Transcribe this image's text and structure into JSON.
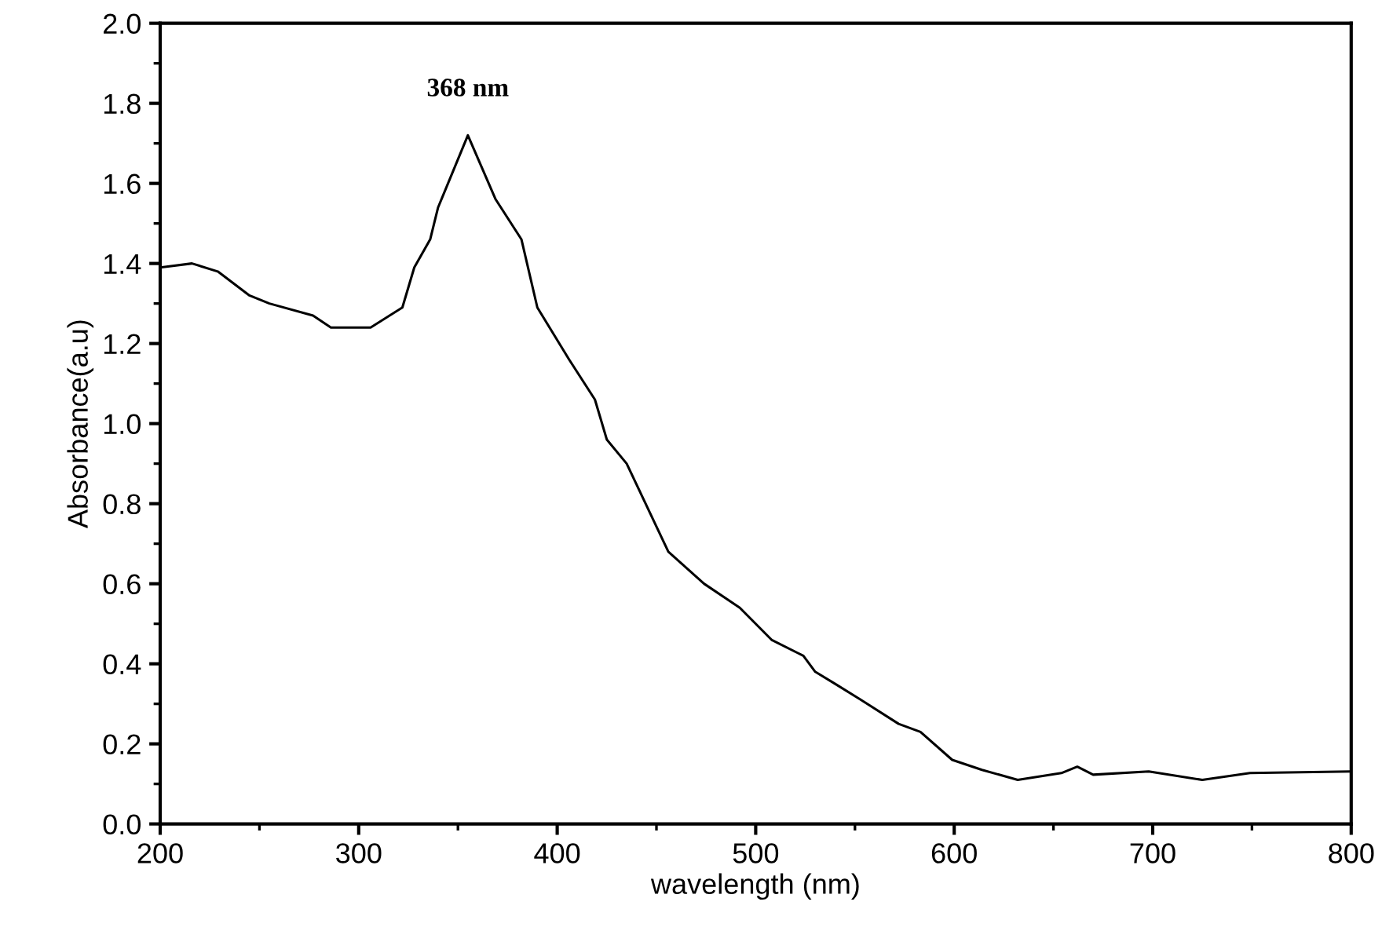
{
  "chart_data": {
    "type": "line",
    "xlabel": "wavelength (nm)",
    "ylabel": "Absorbance(a.u)",
    "xlim": [
      200,
      800
    ],
    "ylim": [
      0,
      2.0
    ],
    "xticks": [
      200,
      300,
      400,
      500,
      600,
      700,
      800
    ],
    "yticks": [
      {
        "value": 0,
        "label": "0.0"
      },
      0.2,
      0.4,
      0.6,
      0.8,
      {
        "value": 1,
        "label": "1.0"
      },
      1.2,
      1.4,
      1.6,
      1.8,
      {
        "value": 2,
        "label": "2.0"
      }
    ],
    "annotations": [
      {
        "text": "368 nm",
        "x": 355,
        "y": 1.72
      }
    ],
    "grid": false,
    "legend": false,
    "marker": "none",
    "line_style": "solid",
    "series": [
      {
        "color": "#000000",
        "x": [
          200,
          216,
          229,
          245,
          255,
          277,
          286,
          306,
          322,
          328,
          336,
          340,
          355,
          369,
          382,
          390,
          406,
          419,
          425,
          435,
          456,
          474,
          492,
          508,
          524,
          530,
          540,
          553,
          572,
          583,
          599,
          614,
          632,
          654,
          662,
          670,
          698,
          725,
          749,
          800
        ],
        "values": [
          1.39,
          1.4,
          1.38,
          1.32,
          1.3,
          1.27,
          1.24,
          1.24,
          1.29,
          1.39,
          1.46,
          1.54,
          1.72,
          1.56,
          1.46,
          1.29,
          1.16,
          1.06,
          0.96,
          0.9,
          0.68,
          0.6,
          0.54,
          0.46,
          0.42,
          0.38,
          0.35,
          0.31,
          0.25,
          0.23,
          0.16,
          0.135,
          0.11,
          0.127,
          0.143,
          0.123,
          0.131,
          0.11,
          0.127,
          0.131
        ]
      }
    ]
  }
}
